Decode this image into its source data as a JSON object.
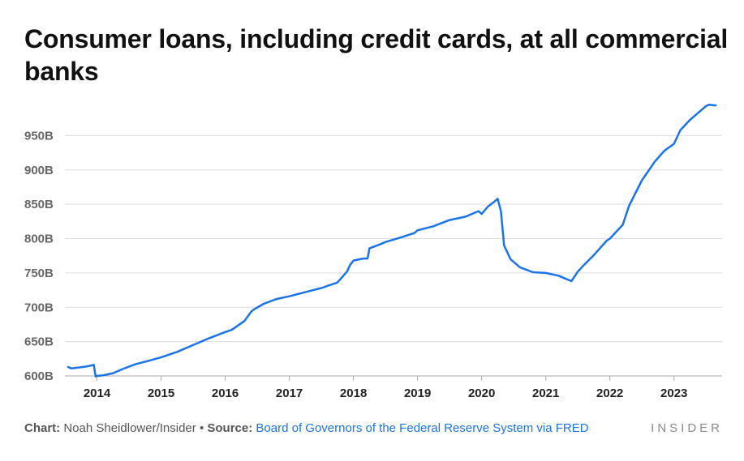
{
  "title": "Consumer loans, including credit cards, at all commercial banks",
  "footer": {
    "chart_label": "Chart:",
    "author": "Noah Sheidlower/Insider",
    "bullet": "•",
    "source_label": "Source:",
    "source": "Board of Governors of the Federal Reserve System via FRED"
  },
  "brand": "INSIDER",
  "colors": {
    "line": "#1a73e8",
    "grid": "#dddddd",
    "baseline": "#aaaaaa"
  },
  "chart_data": {
    "type": "line",
    "title": "Consumer loans, including credit cards, at all commercial banks",
    "xlabel": "",
    "ylabel": "",
    "ylim": [
      600,
      1000
    ],
    "xlim": [
      2013.5,
      2023.75
    ],
    "yticks": [
      600,
      650,
      700,
      750,
      800,
      850,
      900,
      950
    ],
    "ytick_labels": [
      "600B",
      "650B",
      "700B",
      "750B",
      "800B",
      "850B",
      "900B",
      "950B"
    ],
    "xticks": [
      2014,
      2015,
      2016,
      2017,
      2018,
      2019,
      2020,
      2021,
      2022,
      2023
    ],
    "xtick_labels": [
      "2014",
      "2015",
      "2016",
      "2017",
      "2018",
      "2019",
      "2020",
      "2021",
      "2022",
      "2023"
    ],
    "grid": true,
    "legend": "none",
    "series": [
      {
        "x": [
          2013.55,
          2013.6,
          2013.7,
          2013.85,
          2013.95,
          2013.98,
          2014.0,
          2014.1,
          2014.25,
          2014.4,
          2014.6,
          2014.8,
          2015.0,
          2015.25,
          2015.5,
          2015.75,
          2016.0,
          2016.1,
          2016.3,
          2016.4,
          2016.45,
          2016.6,
          2016.8,
          2017.0,
          2017.25,
          2017.5,
          2017.75,
          2017.9,
          2017.95,
          2018.0,
          2018.15,
          2018.22,
          2018.25,
          2018.4,
          2018.5,
          2018.75,
          2018.95,
          2019.0,
          2019.25,
          2019.5,
          2019.75,
          2019.95,
          2020.0,
          2020.1,
          2020.2,
          2020.25,
          2020.3,
          2020.35,
          2020.45,
          2020.6,
          2020.8,
          2021.0,
          2021.2,
          2021.3,
          2021.4,
          2021.5,
          2021.6,
          2021.75,
          2021.95,
          2022.0,
          2022.2,
          2022.3,
          2022.5,
          2022.7,
          2022.85,
          2023.0,
          2023.1,
          2023.25,
          2023.4,
          2023.5,
          2023.55,
          2023.65
        ],
        "values": [
          613,
          611,
          612,
          614,
          616,
          599,
          600,
          601,
          604,
          610,
          617,
          622,
          627,
          635,
          645,
          655,
          664,
          667,
          680,
          693,
          697,
          705,
          712,
          716,
          722,
          728,
          736,
          752,
          762,
          768,
          771,
          771,
          786,
          791,
          795,
          802,
          808,
          812,
          818,
          827,
          832,
          840,
          836,
          847,
          854,
          858,
          840,
          790,
          770,
          758,
          751,
          750,
          746,
          742,
          738,
          752,
          762,
          776,
          797,
          800,
          820,
          848,
          885,
          912,
          928,
          938,
          958,
          973,
          985,
          993,
          995,
          994
        ]
      }
    ]
  }
}
